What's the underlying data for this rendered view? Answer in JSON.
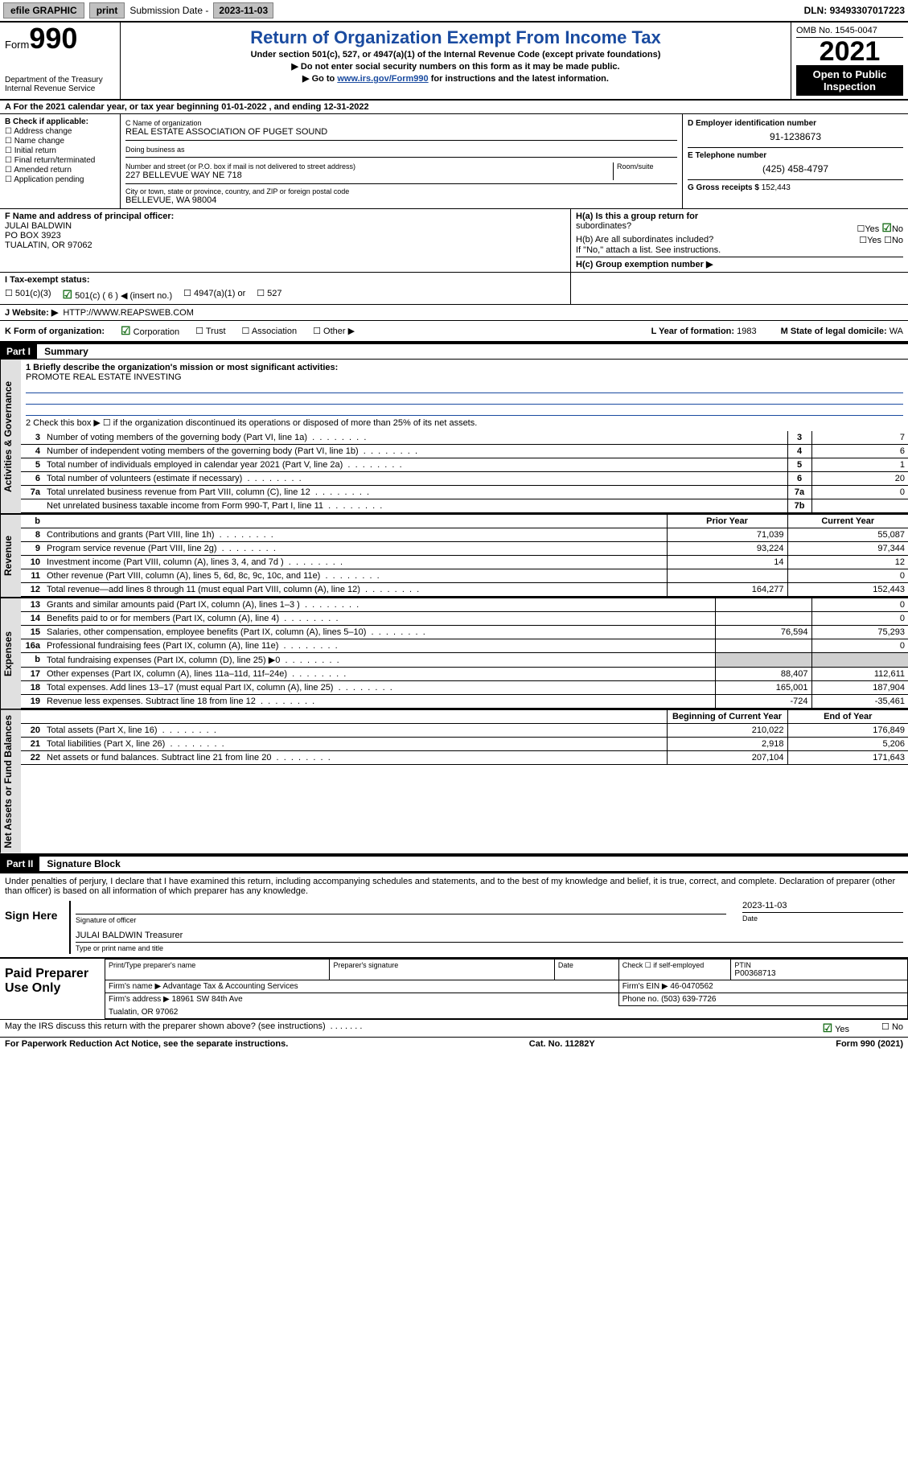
{
  "topbar": {
    "efile": "efile GRAPHIC",
    "print": "print",
    "sub_label": "Submission Date - ",
    "sub_date": "2023-11-03",
    "dln_label": "DLN: ",
    "dln": "93493307017223"
  },
  "header": {
    "form_word": "Form",
    "form_num": "990",
    "dept": "Department of the Treasury",
    "irs": "Internal Revenue Service",
    "title": "Return of Organization Exempt From Income Tax",
    "subtitle": "Under section 501(c), 527, or 4947(a)(1) of the Internal Revenue Code (except private foundations)",
    "line1": "▶ Do not enter social security numbers on this form as it may be made public.",
    "line2_pre": "▶ Go to ",
    "line2_link": "www.irs.gov/Form990",
    "line2_post": " for instructions and the latest information.",
    "omb": "OMB No. 1545-0047",
    "year": "2021",
    "public1": "Open to Public",
    "public2": "Inspection"
  },
  "taxyear": {
    "pre": "A For the 2021 calendar year, or tax year beginning ",
    "begin": "01-01-2022",
    "mid": " , and ending ",
    "end": "12-31-2022"
  },
  "boxB": {
    "label": "B Check if applicable:",
    "items": [
      "Address change",
      "Name change",
      "Initial return",
      "Final return/terminated",
      "Amended return",
      "Application pending"
    ]
  },
  "boxC": {
    "name_label": "C Name of organization",
    "name": "REAL ESTATE ASSOCIATION OF PUGET SOUND",
    "dba_label": "Doing business as",
    "dba": "",
    "addr_label": "Number and street (or P.O. box if mail is not delivered to street address)",
    "room_label": "Room/suite",
    "addr": "227 BELLEVUE WAY NE 718",
    "city_label": "City or town, state or province, country, and ZIP or foreign postal code",
    "city": "BELLEVUE, WA  98004"
  },
  "boxD": {
    "label": "D Employer identification number",
    "val": "91-1238673"
  },
  "boxE": {
    "label": "E Telephone number",
    "val": "(425) 458-4797"
  },
  "boxG": {
    "label": "G Gross receipts $ ",
    "val": "152,443"
  },
  "boxF": {
    "label": "F Name and address of principal officer:",
    "name": "JULAI BALDWIN",
    "addr1": "PO BOX 3923",
    "addr2": "TUALATIN, OR  97062"
  },
  "boxH": {
    "a_label": "H(a)  Is this a group return for",
    "a_label2": "subordinates?",
    "yes": "Yes",
    "no": "No",
    "b_label": "H(b)  Are all subordinates included?",
    "b_note": "If \"No,\" attach a list. See instructions.",
    "c_label": "H(c)  Group exemption number ▶"
  },
  "boxI": {
    "label": "I   Tax-exempt status:",
    "c3": "501(c)(3)",
    "c6": "501(c) ( 6 ) ◀ (insert no.)",
    "a1": "4947(a)(1) or",
    "s527": "527"
  },
  "boxJ": {
    "label": "J   Website: ▶",
    "val": "  HTTP://WWW.REAPSWEB.COM"
  },
  "boxK": {
    "label": "K Form of organization:",
    "corp": "Corporation",
    "trust": "Trust",
    "assoc": "Association",
    "other": "Other ▶"
  },
  "boxL": {
    "label": "L Year of formation: ",
    "val": "1983"
  },
  "boxM": {
    "label": "M State of legal domicile: ",
    "val": "WA"
  },
  "part1": {
    "num": "Part I",
    "title": "Summary"
  },
  "sidelabels": {
    "gov": "Activities & Governance",
    "rev": "Revenue",
    "exp": "Expenses",
    "net": "Net Assets or Fund Balances"
  },
  "summary": {
    "line1_label": "1   Briefly describe the organization's mission or most significant activities:",
    "line1_val": "PROMOTE REAL ESTATE INVESTING",
    "line2": "2   Check this box ▶ ☐  if the organization discontinued its operations or disposed of more than 25% of its net assets.",
    "rows_gov": [
      {
        "n": "3",
        "desc": "Number of voting members of the governing body (Part VI, line 1a)",
        "box": "3",
        "val": "7"
      },
      {
        "n": "4",
        "desc": "Number of independent voting members of the governing body (Part VI, line 1b)",
        "box": "4",
        "val": "6"
      },
      {
        "n": "5",
        "desc": "Total number of individuals employed in calendar year 2021 (Part V, line 2a)",
        "box": "5",
        "val": "1"
      },
      {
        "n": "6",
        "desc": "Total number of volunteers (estimate if necessary)",
        "box": "6",
        "val": "20"
      },
      {
        "n": "7a",
        "desc": "Total unrelated business revenue from Part VIII, column (C), line 12",
        "box": "7a",
        "val": "0"
      },
      {
        "n": "",
        "desc": "Net unrelated business taxable income from Form 990-T, Part I, line 11",
        "box": "7b",
        "val": ""
      }
    ],
    "hdr_b": "b",
    "prior": "Prior Year",
    "current": "Current Year",
    "rows_rev": [
      {
        "n": "8",
        "desc": "Contributions and grants (Part VIII, line 1h)",
        "p": "71,039",
        "c": "55,087"
      },
      {
        "n": "9",
        "desc": "Program service revenue (Part VIII, line 2g)",
        "p": "93,224",
        "c": "97,344"
      },
      {
        "n": "10",
        "desc": "Investment income (Part VIII, column (A), lines 3, 4, and 7d )",
        "p": "14",
        "c": "12"
      },
      {
        "n": "11",
        "desc": "Other revenue (Part VIII, column (A), lines 5, 6d, 8c, 9c, 10c, and 11e)",
        "p": "",
        "c": "0"
      },
      {
        "n": "12",
        "desc": "Total revenue—add lines 8 through 11 (must equal Part VIII, column (A), line 12)",
        "p": "164,277",
        "c": "152,443"
      }
    ],
    "rows_exp": [
      {
        "n": "13",
        "desc": "Grants and similar amounts paid (Part IX, column (A), lines 1–3 )",
        "p": "",
        "c": "0"
      },
      {
        "n": "14",
        "desc": "Benefits paid to or for members (Part IX, column (A), line 4)",
        "p": "",
        "c": "0"
      },
      {
        "n": "15",
        "desc": "Salaries, other compensation, employee benefits (Part IX, column (A), lines 5–10)",
        "p": "76,594",
        "c": "75,293"
      },
      {
        "n": "16a",
        "desc": "Professional fundraising fees (Part IX, column (A), line 11e)",
        "p": "",
        "c": "0"
      },
      {
        "n": "b",
        "desc": "Total fundraising expenses (Part IX, column (D), line 25) ▶0",
        "p": "SHADE",
        "c": "SHADE"
      },
      {
        "n": "17",
        "desc": "Other expenses (Part IX, column (A), lines 11a–11d, 11f–24e)",
        "p": "88,407",
        "c": "112,611"
      },
      {
        "n": "18",
        "desc": "Total expenses. Add lines 13–17 (must equal Part IX, column (A), line 25)",
        "p": "165,001",
        "c": "187,904"
      },
      {
        "n": "19",
        "desc": "Revenue less expenses. Subtract line 18 from line 12",
        "p": "-724",
        "c": "-35,461"
      }
    ],
    "begin": "Beginning of Current Year",
    "end": "End of Year",
    "rows_net": [
      {
        "n": "20",
        "desc": "Total assets (Part X, line 16)",
        "p": "210,022",
        "c": "176,849"
      },
      {
        "n": "21",
        "desc": "Total liabilities (Part X, line 26)",
        "p": "2,918",
        "c": "5,206"
      },
      {
        "n": "22",
        "desc": "Net assets or fund balances. Subtract line 21 from line 20",
        "p": "207,104",
        "c": "171,643"
      }
    ]
  },
  "part2": {
    "num": "Part II",
    "title": "Signature Block"
  },
  "sig": {
    "perjury": "Under penalties of perjury, I declare that I have examined this return, including accompanying schedules and statements, and to the best of my knowledge and belief, it is true, correct, and complete. Declaration of preparer (other than officer) is based on all information of which preparer has any knowledge.",
    "sign_here": "Sign Here",
    "sig_of_officer": "Signature of officer",
    "date_label": "Date",
    "date_val": "2023-11-03",
    "name": "JULAI BALDWIN  Treasurer",
    "name_label": "Type or print name and title"
  },
  "preparer": {
    "title": "Paid Preparer Use Only",
    "col1": "Print/Type preparer's name",
    "col2": "Preparer's signature",
    "col3": "Date",
    "col4_check": "Check ☐ if self-employed",
    "col5_label": "PTIN",
    "col5_val": "P00368713",
    "firm_name_label": "Firm's name    ▶ ",
    "firm_name": "Advantage Tax & Accounting Services",
    "firm_ein_label": "Firm's EIN ▶ ",
    "firm_ein": "46-0470562",
    "firm_addr_label": "Firm's address ▶ ",
    "firm_addr1": "18961 SW 84th Ave",
    "firm_addr2": "Tualatin, OR  97062",
    "phone_label": "Phone no. ",
    "phone": "(503) 639-7726"
  },
  "footer": {
    "discuss": "May the IRS discuss this return with the preparer shown above? (see instructions)",
    "yes": "Yes",
    "no": "No",
    "paperwork": "For Paperwork Reduction Act Notice, see the separate instructions.",
    "catno": "Cat. No. 11282Y",
    "formno": "Form 990 (2021)"
  },
  "colors": {
    "link": "#1a4ba0",
    "check": "#1a6e1a",
    "shade": "#d0d0d0"
  }
}
